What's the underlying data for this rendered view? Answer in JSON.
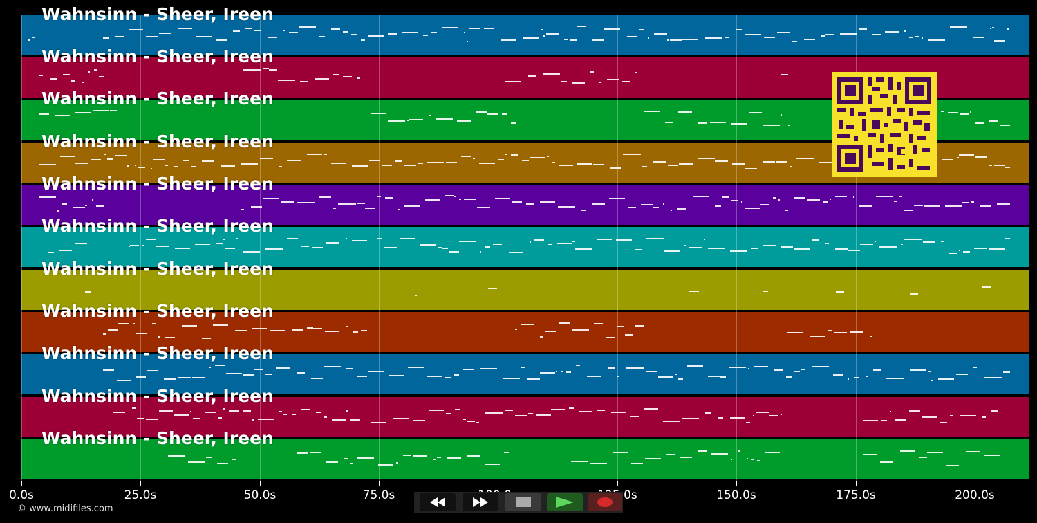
{
  "tracks": [
    {
      "title": "Wahnsinn - Sheer, Ireen",
      "color": "#00669c"
    },
    {
      "title": "Wahnsinn - Sheer, Ireen",
      "color": "#9c0036"
    },
    {
      "title": "Wahnsinn - Sheer, Ireen",
      "color": "#009c2b"
    },
    {
      "title": "Wahnsinn - Sheer, Ireen",
      "color": "#9c6600"
    },
    {
      "title": "Wahnsinn - Sheer, Ireen",
      "color": "#5a009c"
    },
    {
      "title": "Wahnsinn - Sheer, Ireen",
      "color": "#009c9c"
    },
    {
      "title": "Wahnsinn - Sheer, Ireen",
      "color": "#9c9c00"
    },
    {
      "title": "Wahnsinn - Sheer, Ireen",
      "color": "#9c2b00"
    },
    {
      "title": "Wahnsinn - Sheer, Ireen",
      "color": "#00669c"
    },
    {
      "title": "Wahnsinn - Sheer, Ireen",
      "color": "#9c0036"
    },
    {
      "title": "Wahnsinn - Sheer, Ireen",
      "color": "#009c2b"
    }
  ],
  "time_axis": {
    "ticks": [
      "0.0s",
      "25.0s",
      "50.0s",
      "75.0s",
      "100.0s",
      "125.0s",
      "150.0s",
      "175.0s",
      "200.0s"
    ],
    "tick_values": [
      0,
      25,
      50,
      75,
      100,
      125,
      150,
      175,
      200
    ],
    "range": [
      0,
      211
    ]
  },
  "credit": "© www.midifiles.com",
  "transport": {
    "rewind_icon": "rewind-icon",
    "fast_forward_icon": "fast-forward-icon",
    "stop_icon": "stop-icon",
    "play_icon": "play-icon",
    "record_icon": "record-icon",
    "play_color": "#2e8b2e",
    "record_color": "#d42a2a"
  },
  "qr_code": {
    "icon": "qr-code",
    "color": "#f7e12a",
    "dark": "#4a0a5c"
  }
}
